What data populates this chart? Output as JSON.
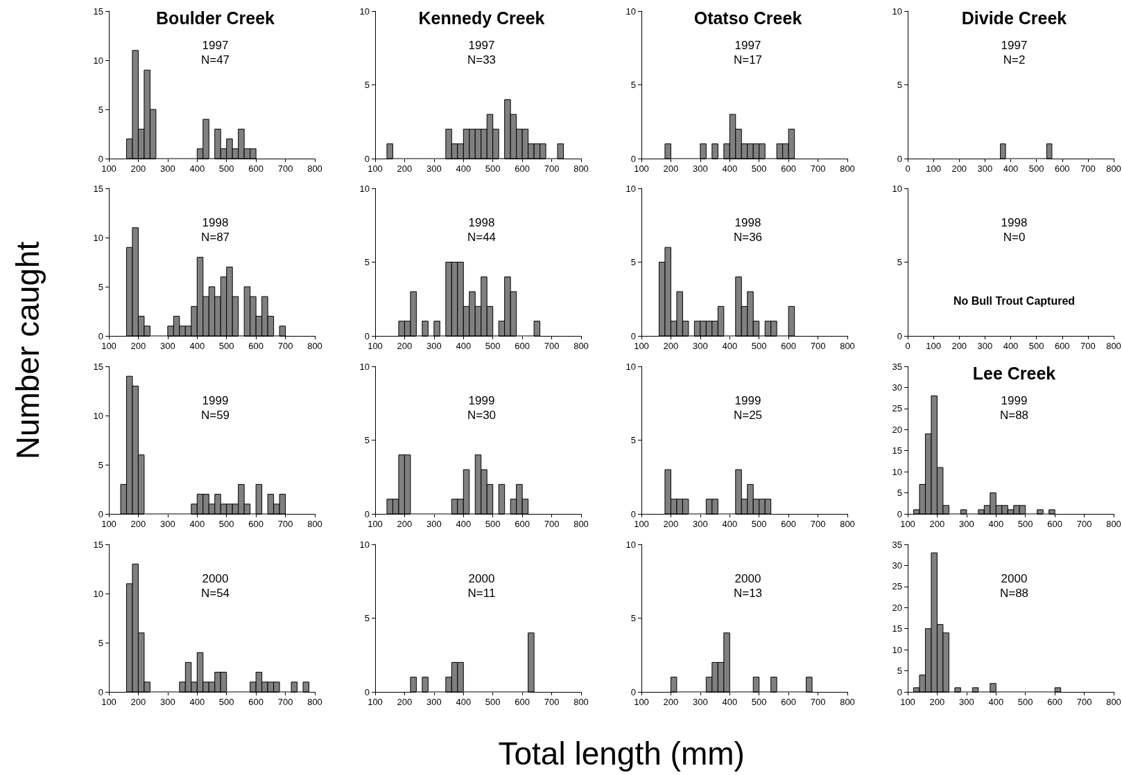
{
  "chart_data": [
    {
      "type": "histogram",
      "title": "Boulder Creek",
      "subtitle": "1997",
      "annotations": [
        "N=47"
      ],
      "color": "#808080",
      "bins": [
        160,
        180,
        200,
        220,
        240,
        260,
        280,
        300,
        320,
        340,
        360,
        380,
        400,
        420,
        440,
        460,
        480,
        500,
        520,
        540,
        560,
        580,
        600
      ],
      "values": [
        2,
        11,
        3,
        9,
        5,
        0,
        0,
        0,
        0,
        0,
        0,
        0,
        1,
        4,
        0,
        3,
        1,
        2,
        1,
        3,
        1,
        1
      ],
      "xlim": [
        100,
        800
      ],
      "xticks": [
        100,
        200,
        300,
        400,
        500,
        600,
        700,
        800
      ],
      "ylim": [
        0,
        15
      ],
      "yticks": [
        0,
        5,
        10,
        15
      ]
    },
    {
      "type": "histogram",
      "title": "Kennedy Creek",
      "subtitle": "1997",
      "annotations": [
        "N=33"
      ],
      "color": "#808080",
      "bins": [
        140,
        160,
        180,
        200,
        220,
        240,
        260,
        280,
        300,
        320,
        340,
        360,
        380,
        400,
        420,
        440,
        460,
        480,
        500,
        520,
        540,
        560,
        580,
        600,
        620,
        640,
        660,
        680,
        700,
        720,
        740
      ],
      "values": [
        1,
        0,
        0,
        0,
        0,
        0,
        0,
        0,
        0,
        0,
        2,
        1,
        1,
        2,
        2,
        2,
        2,
        3,
        2,
        0,
        4,
        3,
        2,
        2,
        1,
        1,
        1,
        0,
        0,
        1
      ],
      "xlim": [
        100,
        800
      ],
      "xticks": [
        100,
        200,
        300,
        400,
        500,
        600,
        700,
        800
      ],
      "ylim": [
        0,
        10
      ],
      "yticks": [
        0,
        5,
        10
      ]
    },
    {
      "type": "histogram",
      "title": "Otatso Creek",
      "subtitle": "1997",
      "annotations": [
        "N=17"
      ],
      "color": "#808080",
      "bins": [
        180,
        200,
        220,
        240,
        260,
        280,
        300,
        320,
        340,
        360,
        380,
        400,
        420,
        440,
        460,
        480,
        500,
        520,
        540,
        560,
        580,
        600,
        620
      ],
      "values": [
        1,
        0,
        0,
        0,
        0,
        0,
        1,
        0,
        1,
        0,
        1,
        3,
        2,
        1,
        1,
        1,
        1,
        0,
        0,
        1,
        1,
        2
      ],
      "xlim": [
        100,
        800
      ],
      "xticks": [
        100,
        200,
        300,
        400,
        500,
        600,
        700,
        800
      ],
      "ylim": [
        0,
        10
      ],
      "yticks": [
        0,
        5,
        10
      ]
    },
    {
      "type": "histogram",
      "title": "Divide Creek",
      "subtitle": "1997",
      "annotations": [
        "N=2"
      ],
      "color": "#808080",
      "bins": [
        360,
        380,
        400,
        420,
        440,
        460,
        480,
        500,
        520,
        540,
        560
      ],
      "values": [
        1,
        0,
        0,
        0,
        0,
        0,
        0,
        0,
        0,
        1
      ],
      "xlim": [
        0,
        800
      ],
      "xticks": [
        0,
        100,
        200,
        300,
        400,
        500,
        600,
        700,
        800
      ],
      "ylim": [
        0,
        10
      ],
      "yticks": [
        0,
        5,
        10
      ]
    },
    {
      "type": "histogram",
      "subtitle": "1998",
      "annotations": [
        "N=87"
      ],
      "ylabel": "Number caught",
      "color": "#808080",
      "bins": [
        160,
        180,
        200,
        220,
        240,
        260,
        280,
        300,
        320,
        340,
        360,
        380,
        400,
        420,
        440,
        460,
        480,
        500,
        520,
        540,
        560,
        580,
        600,
        620,
        640,
        660,
        680,
        700
      ],
      "values": [
        9,
        11,
        2,
        1,
        0,
        0,
        0,
        1,
        2,
        1,
        1,
        3,
        8,
        4,
        5,
        4,
        6,
        7,
        4,
        0,
        5,
        4,
        2,
        4,
        2,
        0,
        1
      ],
      "xlim": [
        100,
        800
      ],
      "xticks": [
        100,
        200,
        300,
        400,
        500,
        600,
        700,
        800
      ],
      "ylim": [
        0,
        15
      ],
      "yticks": [
        0,
        5,
        10,
        15
      ]
    },
    {
      "type": "histogram",
      "subtitle": "1998",
      "annotations": [
        "N=44"
      ],
      "color": "#808080",
      "bins": [
        180,
        200,
        220,
        240,
        260,
        280,
        300,
        320,
        340,
        360,
        380,
        400,
        420,
        440,
        460,
        480,
        500,
        520,
        540,
        560,
        580,
        600,
        620,
        640,
        660
      ],
      "values": [
        1,
        1,
        3,
        0,
        1,
        0,
        1,
        0,
        5,
        5,
        5,
        2,
        3,
        2,
        4,
        2,
        0,
        1,
        4,
        3,
        0,
        0,
        0,
        1
      ],
      "xlim": [
        100,
        800
      ],
      "xticks": [
        100,
        200,
        300,
        400,
        500,
        600,
        700,
        800
      ],
      "ylim": [
        0,
        10
      ],
      "yticks": [
        0,
        5,
        10
      ]
    },
    {
      "type": "histogram",
      "subtitle": "1998",
      "annotations": [
        "N=36"
      ],
      "color": "#808080",
      "bins": [
        160,
        180,
        200,
        220,
        240,
        260,
        280,
        300,
        320,
        340,
        360,
        380,
        400,
        420,
        440,
        460,
        480,
        500,
        520,
        540,
        560,
        580,
        600,
        620
      ],
      "values": [
        5,
        6,
        1,
        3,
        1,
        0,
        1,
        1,
        1,
        1,
        2,
        0,
        0,
        4,
        2,
        3,
        1,
        0,
        1,
        1,
        0,
        0,
        2
      ],
      "xlim": [
        100,
        800
      ],
      "xticks": [
        100,
        200,
        300,
        400,
        500,
        600,
        700,
        800
      ],
      "ylim": [
        0,
        10
      ],
      "yticks": [
        0,
        5,
        10
      ]
    },
    {
      "type": "histogram",
      "subtitle": "1998",
      "annotations": [
        "N=0",
        "No Bull Trout Captured"
      ],
      "xlim": [
        0,
        800
      ],
      "xticks": [
        0,
        100,
        200,
        300,
        400,
        500,
        600,
        700,
        800
      ],
      "ylim": [
        0,
        10
      ],
      "yticks": [
        0,
        5,
        10
      ]
    },
    {
      "type": "histogram",
      "subtitle": "1999",
      "annotations": [
        "N=59"
      ],
      "color": "#808080",
      "bins": [
        140,
        160,
        180,
        200,
        220,
        240,
        260,
        280,
        300,
        320,
        340,
        360,
        380,
        400,
        420,
        440,
        460,
        480,
        500,
        520,
        540,
        560,
        580,
        600,
        620,
        640,
        660,
        680,
        700
      ],
      "values": [
        3,
        14,
        13,
        6,
        0,
        0,
        0,
        0,
        0,
        0,
        0,
        0,
        1,
        2,
        2,
        1,
        2,
        1,
        1,
        1,
        3,
        1,
        0,
        3,
        0,
        2,
        1,
        2
      ],
      "xlim": [
        100,
        800
      ],
      "xticks": [
        100,
        200,
        300,
        400,
        500,
        600,
        700,
        800
      ],
      "ylim": [
        0,
        15
      ],
      "yticks": [
        0,
        5,
        10,
        15
      ]
    },
    {
      "type": "histogram",
      "subtitle": "1999",
      "annotations": [
        "N=30"
      ],
      "color": "#808080",
      "bins": [
        140,
        160,
        180,
        200,
        220,
        240,
        260,
        280,
        300,
        320,
        340,
        360,
        380,
        400,
        420,
        440,
        460,
        480,
        500,
        520,
        540,
        560,
        580,
        600,
        620
      ],
      "values": [
        1,
        1,
        4,
        4,
        0,
        0,
        0,
        0,
        0,
        0,
        0,
        1,
        1,
        3,
        0,
        4,
        3,
        2,
        0,
        2,
        0,
        1,
        2,
        1
      ],
      "xlim": [
        100,
        800
      ],
      "xticks": [
        100,
        200,
        300,
        400,
        500,
        600,
        700,
        800
      ],
      "ylim": [
        0,
        10
      ],
      "yticks": [
        0,
        5,
        10
      ]
    },
    {
      "type": "histogram",
      "subtitle": "1999",
      "annotations": [
        "N=25"
      ],
      "color": "#808080",
      "bins": [
        180,
        200,
        220,
        240,
        260,
        280,
        300,
        320,
        340,
        360,
        380,
        400,
        420,
        440,
        460,
        480,
        500,
        520,
        540
      ],
      "values": [
        3,
        1,
        1,
        1,
        0,
        0,
        0,
        1,
        1,
        0,
        0,
        0,
        3,
        1,
        2,
        1,
        1,
        1
      ],
      "xlim": [
        100,
        800
      ],
      "xticks": [
        100,
        200,
        300,
        400,
        500,
        600,
        700,
        800
      ],
      "ylim": [
        0,
        10
      ],
      "yticks": [
        0,
        5,
        10
      ]
    },
    {
      "type": "histogram",
      "title": "Lee Creek",
      "subtitle": "1999",
      "annotations": [
        "N=88"
      ],
      "color": "#808080",
      "bins": [
        120,
        140,
        160,
        180,
        200,
        220,
        240,
        260,
        280,
        300,
        320,
        340,
        360,
        380,
        400,
        420,
        440,
        460,
        480,
        500,
        520,
        540,
        560,
        580,
        600
      ],
      "values": [
        1,
        7,
        19,
        28,
        11,
        2,
        0,
        0,
        1,
        0,
        0,
        1,
        2,
        5,
        2,
        2,
        1,
        2,
        2,
        0,
        0,
        1,
        0,
        1
      ],
      "xlim": [
        100,
        800
      ],
      "xticks": [
        100,
        200,
        300,
        400,
        500,
        600,
        700,
        800
      ],
      "ylim": [
        0,
        35
      ],
      "yticks": [
        0,
        5,
        10,
        15,
        20,
        25,
        30,
        35
      ]
    },
    {
      "type": "histogram",
      "subtitle": "2000",
      "annotations": [
        "N=54"
      ],
      "color": "#808080",
      "bins": [
        160,
        180,
        200,
        220,
        240,
        260,
        280,
        300,
        320,
        340,
        360,
        380,
        400,
        420,
        440,
        460,
        480,
        500,
        520,
        540,
        560,
        580,
        600,
        620,
        640,
        660,
        680,
        700,
        720,
        740,
        760,
        780
      ],
      "values": [
        11,
        13,
        6,
        1,
        0,
        0,
        0,
        0,
        0,
        1,
        3,
        1,
        4,
        1,
        1,
        2,
        2,
        0,
        0,
        0,
        0,
        1,
        2,
        1,
        1,
        1,
        0,
        0,
        1,
        0,
        1
      ],
      "xlim": [
        100,
        800
      ],
      "xticks": [
        100,
        200,
        300,
        400,
        500,
        600,
        700,
        800
      ],
      "ylim": [
        0,
        15
      ],
      "yticks": [
        0,
        5,
        10,
        15
      ]
    },
    {
      "type": "histogram",
      "subtitle": "2000",
      "annotations": [
        "N=11"
      ],
      "xlabel": "Total length (mm)",
      "color": "#808080",
      "bins": [
        220,
        240,
        260,
        280,
        300,
        320,
        340,
        360,
        380,
        400,
        420,
        440,
        460,
        480,
        500,
        520,
        540,
        560,
        580,
        600,
        620,
        640
      ],
      "values": [
        1,
        0,
        1,
        0,
        0,
        0,
        1,
        2,
        2,
        0,
        0,
        0,
        0,
        0,
        0,
        0,
        0,
        0,
        0,
        0,
        4
      ],
      "xlim": [
        100,
        800
      ],
      "xticks": [
        100,
        200,
        300,
        400,
        500,
        600,
        700,
        800
      ],
      "ylim": [
        0,
        10
      ],
      "yticks": [
        0,
        5,
        10
      ]
    },
    {
      "type": "histogram",
      "subtitle": "2000",
      "annotations": [
        "N=13"
      ],
      "color": "#808080",
      "bins": [
        200,
        220,
        240,
        260,
        280,
        300,
        320,
        340,
        360,
        380,
        400,
        420,
        440,
        460,
        480,
        500,
        520,
        540,
        560,
        580,
        600,
        620,
        640,
        660,
        680
      ],
      "values": [
        1,
        0,
        0,
        0,
        0,
        0,
        1,
        2,
        2,
        4,
        0,
        0,
        0,
        0,
        1,
        0,
        0,
        1,
        0,
        0,
        0,
        0,
        0,
        1
      ],
      "xlim": [
        100,
        800
      ],
      "xticks": [
        100,
        200,
        300,
        400,
        500,
        600,
        700,
        800
      ],
      "ylim": [
        0,
        10
      ],
      "yticks": [
        0,
        5,
        10
      ]
    },
    {
      "type": "histogram",
      "subtitle": "2000",
      "annotations": [
        "N=88"
      ],
      "color": "#808080",
      "bins": [
        120,
        140,
        160,
        180,
        200,
        220,
        240,
        260,
        280,
        300,
        320,
        340,
        360,
        380,
        400,
        420,
        440,
        460,
        480,
        500,
        520,
        540,
        560,
        580,
        600,
        620
      ],
      "values": [
        1,
        4,
        15,
        33,
        16,
        14,
        0,
        1,
        0,
        0,
        1,
        0,
        0,
        2,
        0,
        0,
        0,
        0,
        0,
        0,
        0,
        0,
        0,
        0,
        1
      ],
      "xlim": [
        100,
        800
      ],
      "xticks": [
        100,
        200,
        300,
        400,
        500,
        600,
        700,
        800
      ],
      "ylim": [
        0,
        35
      ],
      "yticks": [
        0,
        5,
        10,
        15,
        20,
        25,
        30,
        35
      ]
    }
  ]
}
